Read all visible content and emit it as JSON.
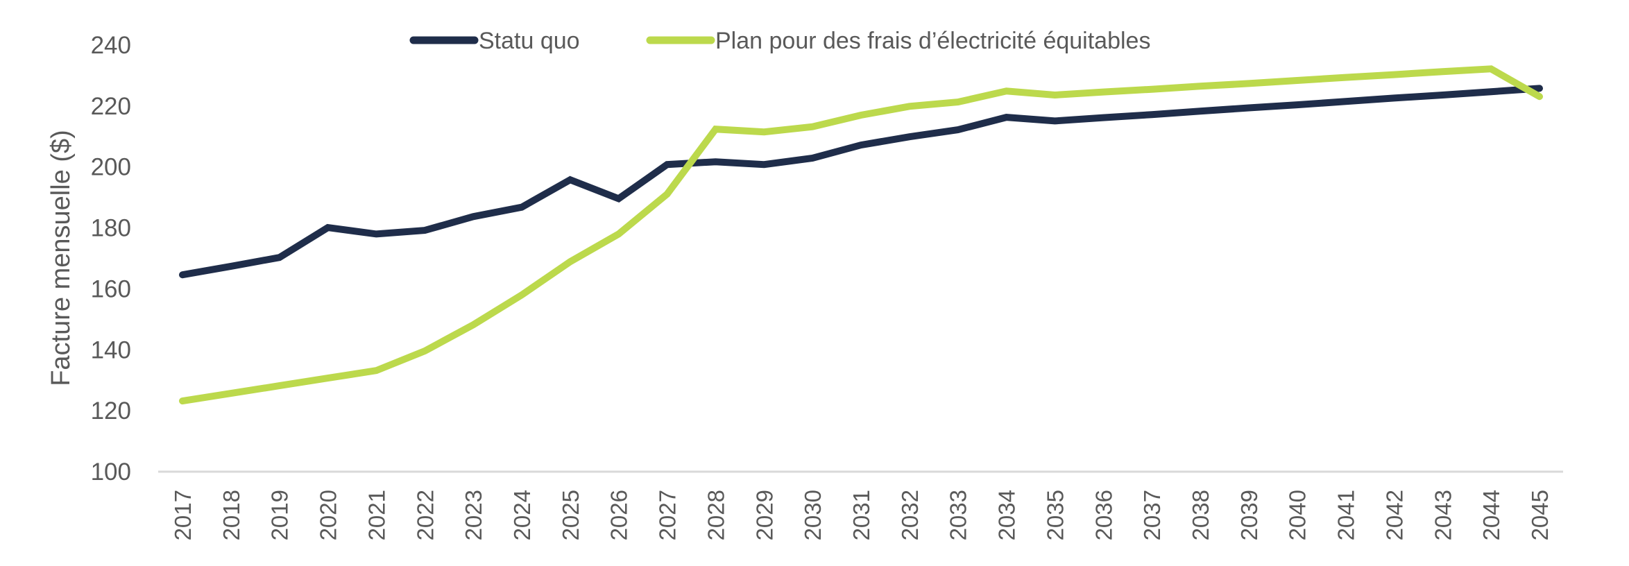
{
  "chart_data": {
    "type": "line",
    "title": "",
    "xlabel": "",
    "ylabel": "Facture mensuelle ($)",
    "ylim": [
      100,
      240
    ],
    "yticks": [
      "100",
      "120",
      "140",
      "160",
      "180",
      "200",
      "220",
      "240"
    ],
    "grid": false,
    "legend_position": "top-center",
    "x": [
      "2017",
      "2018",
      "2019",
      "2020",
      "2021",
      "2022",
      "2023",
      "2024",
      "2025",
      "2026",
      "2027",
      "2028",
      "2029",
      "2030",
      "2031",
      "2032",
      "2033",
      "2034",
      "2035",
      "2036",
      "2037",
      "2038",
      "2039",
      "2040",
      "2041",
      "2042",
      "2043",
      "2044",
      "2045"
    ],
    "series": [
      {
        "name": "Statu quo",
        "color": "#1f2d4a",
        "values": [
          164.6,
          167.4,
          170.3,
          180.1,
          178.0,
          179.2,
          183.7,
          186.8,
          195.8,
          189.6,
          200.8,
          201.7,
          200.8,
          202.9,
          207.2,
          209.9,
          212.2,
          216.3,
          215.1,
          216.2,
          217.2,
          218.3,
          219.4,
          220.4,
          221.5,
          222.6,
          223.6,
          224.7,
          225.8
        ]
      },
      {
        "name": "Plan pour des frais d’électricité équitables",
        "color": "#bcd94c",
        "values": [
          123.2,
          125.7,
          128.2,
          130.7,
          133.2,
          139.6,
          148.2,
          158.0,
          168.9,
          178.0,
          191.1,
          212.4,
          211.5,
          213.2,
          217.0,
          219.9,
          221.3,
          224.9,
          223.6,
          224.6,
          225.5,
          226.5,
          227.4,
          228.4,
          229.4,
          230.3,
          231.3,
          232.2,
          223.1
        ]
      }
    ]
  }
}
